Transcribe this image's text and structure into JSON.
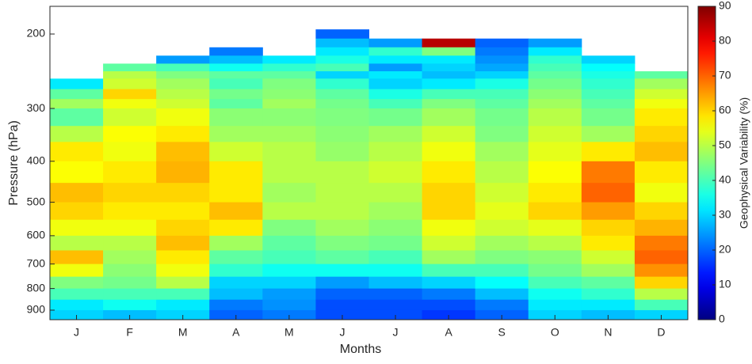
{
  "chart_data": {
    "type": "heatmap",
    "xlabel": "Months",
    "ylabel": "Pressure (hPa)",
    "colorbar_label": "Geophysical Variability (%)",
    "categories": [
      "J",
      "F",
      "M",
      "A",
      "M",
      "J",
      "J",
      "A",
      "S",
      "O",
      "N",
      "D"
    ],
    "bins": [
      195,
      205,
      215,
      225,
      235,
      245,
      255,
      270,
      285,
      300,
      330,
      360,
      400,
      450,
      500,
      550,
      600,
      650,
      700,
      750,
      800,
      850,
      900,
      948
    ],
    "values": [
      [
        null,
        null,
        null,
        null,
        null,
        null,
        32,
        42,
        48,
        42,
        50,
        58,
        56,
        62,
        60,
        55,
        50,
        62,
        55,
        45,
        40,
        32,
        30
      ],
      [
        null,
        null,
        null,
        null,
        42,
        50,
        52,
        60,
        55,
        52,
        56,
        55,
        58,
        60,
        58,
        55,
        50,
        48,
        46,
        44,
        40,
        35,
        28
      ],
      [
        null,
        null,
        null,
        25,
        40,
        45,
        48,
        50,
        52,
        55,
        58,
        62,
        63,
        60,
        58,
        60,
        62,
        58,
        55,
        50,
        40,
        32,
        30
      ],
      [
        null,
        null,
        22,
        28,
        35,
        42,
        40,
        44,
        42,
        46,
        48,
        52,
        58,
        58,
        62,
        58,
        48,
        42,
        38,
        30,
        28,
        22,
        20
      ],
      [
        null,
        null,
        null,
        32,
        38,
        42,
        45,
        46,
        48,
        46,
        48,
        50,
        50,
        48,
        50,
        45,
        42,
        40,
        35,
        30,
        25,
        24,
        22
      ],
      [
        20,
        28,
        32,
        36,
        40,
        30,
        38,
        42,
        44,
        45,
        46,
        47,
        50,
        50,
        50,
        48,
        45,
        42,
        35,
        25,
        20,
        18,
        18
      ],
      [
        null,
        25,
        38,
        32,
        25,
        32,
        30,
        36,
        40,
        44,
        48,
        50,
        52,
        50,
        48,
        46,
        44,
        40,
        35,
        28,
        20,
        18,
        18
      ],
      [
        null,
        85,
        45,
        32,
        30,
        28,
        32,
        40,
        45,
        48,
        52,
        55,
        58,
        60,
        60,
        55,
        52,
        48,
        40,
        30,
        22,
        18,
        16
      ],
      [
        null,
        20,
        22,
        24,
        26,
        30,
        36,
        40,
        42,
        44,
        45,
        48,
        50,
        52,
        54,
        52,
        48,
        45,
        40,
        34,
        28,
        22,
        20
      ],
      [
        null,
        25,
        32,
        38,
        40,
        42,
        44,
        46,
        48,
        50,
        52,
        54,
        56,
        58,
        60,
        54,
        50,
        46,
        44,
        40,
        35,
        32,
        30
      ],
      [
        null,
        null,
        null,
        30,
        34,
        36,
        38,
        40,
        42,
        44,
        48,
        58,
        68,
        70,
        65,
        60,
        58,
        52,
        48,
        42,
        38,
        32,
        28
      ],
      [
        null,
        null,
        null,
        null,
        null,
        42,
        48,
        52,
        55,
        58,
        60,
        62,
        58,
        55,
        60,
        63,
        68,
        70,
        66,
        60,
        50,
        40,
        30
      ]
    ],
    "ylim": [
      948,
      172
    ],
    "log_y": true,
    "y_reversed": true,
    "yticks": [
      200,
      300,
      400,
      500,
      600,
      700,
      800,
      900
    ],
    "clim": [
      0,
      90
    ],
    "cticks": [
      0,
      10,
      20,
      30,
      40,
      50,
      60,
      70,
      80,
      90
    ],
    "colormap": "jet"
  }
}
